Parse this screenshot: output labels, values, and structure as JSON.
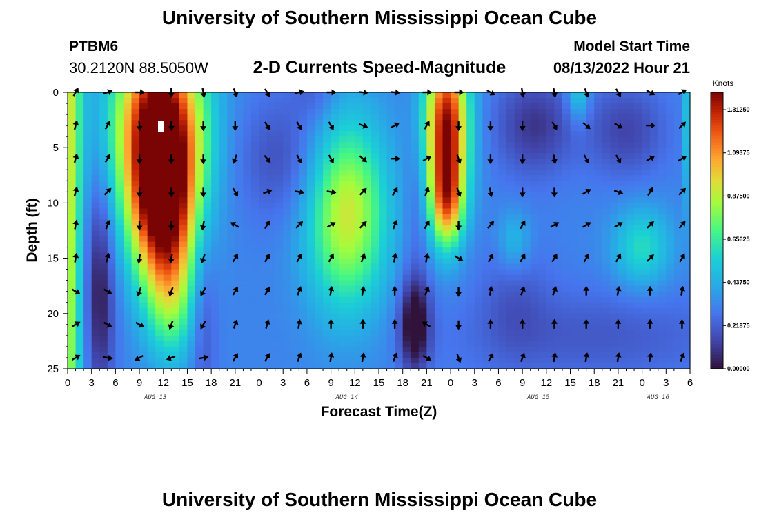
{
  "header": {
    "title": "University of Southern Mississippi Ocean Cube",
    "station": "PTBM6",
    "coordinates": "30.2120N  88.5050W",
    "plot_title": "2-D Currents Speed-Magnitude",
    "model_start_label": "Model Start Time",
    "model_start_value": "08/13/2022 Hour 21"
  },
  "footer": {
    "title": "University of Southern Mississippi Ocean Cube"
  },
  "colors": {
    "low": "#30123b",
    "high": "#7a0403"
  },
  "chart_data": {
    "type": "heatmap",
    "title": "2-D Currents Speed-Magnitude",
    "xlabel": "Forecast Time(Z)",
    "ylabel": "Depth (ft)",
    "xlim": [
      0,
      78
    ],
    "ylim": [
      0,
      25
    ],
    "x_ticks": [
      "0",
      "3",
      "6",
      "9",
      "12",
      "15",
      "18",
      "21",
      "0",
      "3",
      "6",
      "9",
      "12",
      "15",
      "18",
      "21",
      "0",
      "3",
      "6",
      "9",
      "12",
      "15",
      "18",
      "21",
      "0",
      "3",
      "6"
    ],
    "y_ticks": [
      "0",
      "5",
      "10",
      "15",
      "20",
      "25"
    ],
    "date_labels": [
      {
        "label": "AUG 13",
        "hour": 11
      },
      {
        "label": "AUG 14",
        "hour": 35
      },
      {
        "label": "AUG 15",
        "hour": 59
      },
      {
        "label": "AUG 16",
        "hour": 74
      }
    ],
    "colorbar": {
      "unit": "Knots",
      "min": 0.0,
      "max": 1.4,
      "tick_labels": [
        "1.31250",
        "1.09375",
        "0.87500",
        "0.65625",
        "0.43750",
        "0.21875",
        "0.00000"
      ],
      "tick_values": [
        1.3125,
        1.09375,
        0.875,
        0.65625,
        0.4375,
        0.21875,
        0.0
      ]
    },
    "speed_features_knots": [
      {
        "hour": 0,
        "depth": 0,
        "value": 0.6,
        "sh": 1.3,
        "sd": 40
      },
      {
        "hour": 4,
        "depth": 18,
        "value": -0.3,
        "sh": 1.3,
        "sd": 7
      },
      {
        "hour": 11.5,
        "depth": 3,
        "value": 1.15,
        "sh": 3.8,
        "sd": 6
      },
      {
        "hour": 12,
        "depth": 11,
        "value": 0.9,
        "sh": 2.8,
        "sd": 5
      },
      {
        "hour": 13,
        "depth": 19,
        "value": 0.35,
        "sh": 2.2,
        "sd": 4
      },
      {
        "hour": 17,
        "depth": 20,
        "value": -0.15,
        "sh": 1.2,
        "sd": 6
      },
      {
        "hour": 27,
        "depth": 6,
        "value": -0.15,
        "sh": 4,
        "sd": 4
      },
      {
        "hour": 35,
        "depth": 11,
        "value": 0.6,
        "sh": 3.5,
        "sd": 6
      },
      {
        "hour": 31,
        "depth": 0,
        "value": -0.1,
        "sh": 2,
        "sd": 2
      },
      {
        "hour": 43.5,
        "depth": 21,
        "value": -0.42,
        "sh": 1.3,
        "sd": 3
      },
      {
        "hour": 44,
        "depth": 10,
        "value": -0.1,
        "sh": 1.2,
        "sd": 5
      },
      {
        "hour": 47.5,
        "depth": 3,
        "value": 1.05,
        "sh": 1.9,
        "sd": 5
      },
      {
        "hour": 47.5,
        "depth": 10,
        "value": 0.6,
        "sh": 1.5,
        "sd": 3
      },
      {
        "hour": 58.5,
        "depth": 3,
        "value": -0.22,
        "sh": 3.5,
        "sd": 3.2
      },
      {
        "hour": 56,
        "depth": 18,
        "value": -0.1,
        "sh": 3,
        "sd": 4
      },
      {
        "hour": 56,
        "depth": 13.5,
        "value": 0.18,
        "sh": 1.5,
        "sd": 2
      },
      {
        "hour": 64,
        "depth": 0,
        "value": 0.25,
        "sh": 1,
        "sd": 2
      },
      {
        "hour": 70,
        "depth": 3.5,
        "value": -0.18,
        "sh": 3.5,
        "sd": 3
      },
      {
        "hour": 72,
        "depth": 14,
        "value": 0.28,
        "sh": 2.5,
        "sd": 2.5
      },
      {
        "hour": 78,
        "depth": 3,
        "value": 0.3,
        "sh": 0.5,
        "sd": 5
      },
      {
        "hour": 66,
        "depth": 22,
        "value": -0.12,
        "sh": 12,
        "sd": 3
      }
    ],
    "arrow_rows_depth_ft": [
      0,
      3,
      6,
      9,
      12,
      15,
      18,
      21,
      24
    ],
    "arrow_columns_hour": [
      1,
      5,
      9,
      13,
      17,
      21,
      25,
      29,
      33,
      37,
      41,
      45,
      49,
      53,
      57,
      61,
      65,
      69,
      73,
      77
    ],
    "arrow_directions_deg": [
      [
        30,
        70,
        90,
        180,
        170,
        160,
        150,
        80,
        90,
        95,
        95,
        90,
        90,
        120,
        170,
        170,
        160,
        150,
        120,
        60
      ],
      [
        15,
        30,
        175,
        175,
        180,
        180,
        150,
        150,
        150,
        110,
        60,
        30,
        180,
        180,
        180,
        150,
        130,
        120,
        90,
        45
      ],
      [
        15,
        30,
        180,
        180,
        180,
        200,
        140,
        150,
        150,
        130,
        90,
        60,
        160,
        180,
        180,
        170,
        150,
        150,
        60,
        60
      ],
      [
        15,
        45,
        180,
        180,
        180,
        150,
        70,
        100,
        100,
        45,
        30,
        20,
        160,
        170,
        180,
        180,
        60,
        110,
        30,
        45
      ],
      [
        10,
        20,
        180,
        180,
        190,
        300,
        30,
        45,
        60,
        45,
        20,
        30,
        180,
        40,
        30,
        60,
        60,
        60,
        45,
        40
      ],
      [
        10,
        15,
        190,
        190,
        200,
        30,
        30,
        30,
        30,
        20,
        10,
        10,
        120,
        30,
        30,
        30,
        30,
        30,
        45,
        30
      ],
      [
        120,
        120,
        200,
        200,
        210,
        30,
        30,
        20,
        10,
        10,
        0,
        20,
        180,
        10,
        20,
        20,
        0,
        10,
        0,
        10
      ],
      [
        60,
        120,
        120,
        200,
        210,
        20,
        15,
        10,
        0,
        0,
        0,
        300,
        180,
        0,
        0,
        0,
        0,
        0,
        0,
        0
      ],
      [
        60,
        100,
        240,
        250,
        80,
        30,
        30,
        20,
        10,
        10,
        20,
        120,
        160,
        30,
        20,
        10,
        10,
        10,
        10,
        20
      ]
    ]
  }
}
